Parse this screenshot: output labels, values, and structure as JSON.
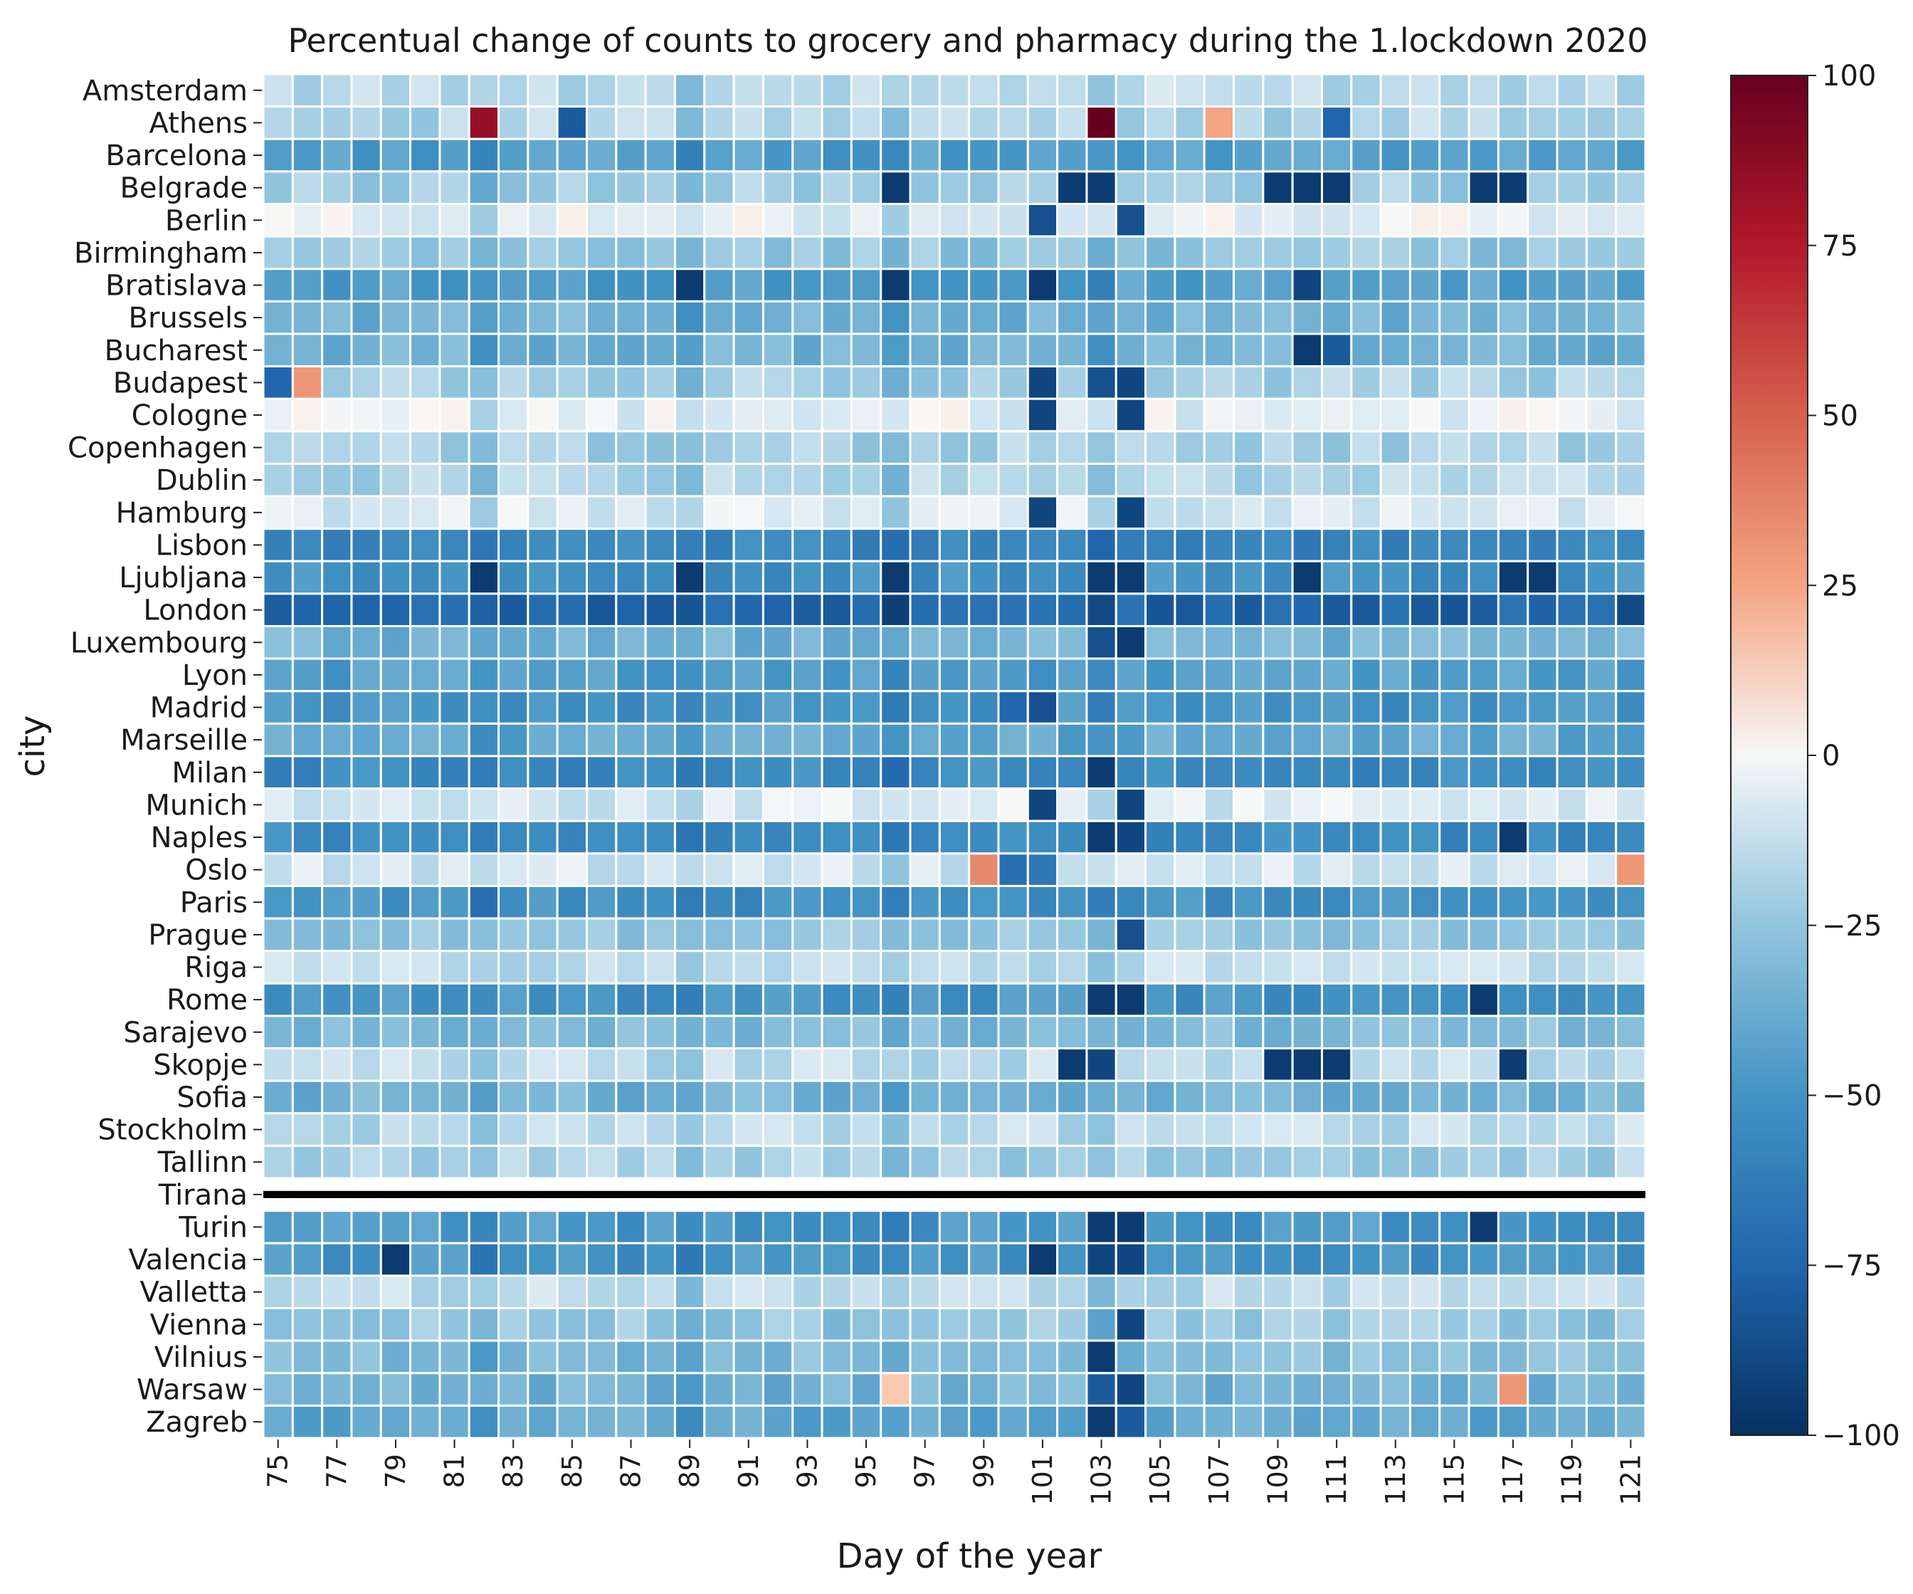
{
  "chart_data": {
    "type": "heatmap",
    "title": "Percentual change of counts to grocery and pharmacy during the 1.lockdown 2020",
    "xlabel": "Day of the year",
    "ylabel": "city",
    "x": [
      75,
      76,
      77,
      78,
      79,
      80,
      81,
      82,
      83,
      84,
      85,
      86,
      87,
      88,
      89,
      90,
      91,
      92,
      93,
      94,
      95,
      96,
      97,
      98,
      99,
      100,
      101,
      102,
      103,
      104,
      105,
      106,
      107,
      108,
      109,
      110,
      111,
      112,
      113,
      114,
      115,
      116,
      117,
      118,
      119,
      120,
      121
    ],
    "x_tick_labels": [
      "75",
      "77",
      "79",
      "81",
      "83",
      "85",
      "87",
      "89",
      "91",
      "93",
      "95",
      "97",
      "99",
      "101",
      "103",
      "105",
      "107",
      "109",
      "111",
      "113",
      "115",
      "117",
      "119",
      "121"
    ],
    "y": [
      "Amsterdam",
      "Athens",
      "Barcelona",
      "Belgrade",
      "Berlin",
      "Birmingham",
      "Bratislava",
      "Brussels",
      "Bucharest",
      "Budapest",
      "Cologne",
      "Copenhagen",
      "Dublin",
      "Hamburg",
      "Lisbon",
      "Ljubljana",
      "London",
      "Luxembourg",
      "Lyon",
      "Madrid",
      "Marseille",
      "Milan",
      "Munich",
      "Naples",
      "Oslo",
      "Paris",
      "Prague",
      "Riga",
      "Rome",
      "Sarajevo",
      "Skopje",
      "Sofia",
      "Stockholm",
      "Tallinn",
      "Tirana",
      "Turin",
      "Valencia",
      "Valletta",
      "Vienna",
      "Vilnius",
      "Warsaw",
      "Zagreb"
    ],
    "colorbar": {
      "range": [
        -100,
        100
      ],
      "ticks": [
        100,
        75,
        50,
        25,
        0,
        -25,
        -50,
        -75,
        -100
      ],
      "tick_labels": [
        "100",
        "75",
        "50",
        "25",
        "0",
        "−25",
        "−50",
        "−75",
        "−100"
      ],
      "colormap": "RdBu_r"
    },
    "missing_row": "Tirana",
    "base_levels": {
      "Amsterdam": -15,
      "Athens": -18,
      "Barcelona": -45,
      "Belgrade": -22,
      "Berlin": -5,
      "Birmingham": -25,
      "Bratislava": -45,
      "Brussels": -35,
      "Bucharest": -35,
      "Budapest": -20,
      "Cologne": -5,
      "Copenhagen": -20,
      "Dublin": -18,
      "Hamburg": -8,
      "Lisbon": -58,
      "Ljubljana": -52,
      "London": -75,
      "Luxembourg": -35,
      "Lyon": -45,
      "Madrid": -50,
      "Marseille": -40,
      "Milan": -55,
      "Munich": -8,
      "Naples": -55,
      "Oslo": -10,
      "Paris": -52,
      "Prague": -25,
      "Riga": -15,
      "Rome": -50,
      "Sarajevo": -30,
      "Skopje": -15,
      "Sofia": -35,
      "Stockholm": -15,
      "Tallinn": -20,
      "Turin": -48,
      "Valencia": -50,
      "Valletta": -15,
      "Vienna": -25,
      "Vilnius": -30,
      "Warsaw": -35,
      "Zagreb": -40
    },
    "highlights": [
      {
        "city": "Athens",
        "day": 82,
        "value": 85
      },
      {
        "city": "Athens",
        "day": 103,
        "value": 100
      },
      {
        "city": "Athens",
        "day": 85,
        "value": -80
      },
      {
        "city": "Athens",
        "day": 107,
        "value": 25
      },
      {
        "city": "Athens",
        "day": 111,
        "value": -75
      },
      {
        "city": "Belgrade",
        "day": 96,
        "value": -95
      },
      {
        "city": "Belgrade",
        "day": 102,
        "value": -95
      },
      {
        "city": "Belgrade",
        "day": 103,
        "value": -95
      },
      {
        "city": "Belgrade",
        "day": 109,
        "value": -95
      },
      {
        "city": "Belgrade",
        "day": 110,
        "value": -95
      },
      {
        "city": "Belgrade",
        "day": 111,
        "value": -95
      },
      {
        "city": "Belgrade",
        "day": 116,
        "value": -95
      },
      {
        "city": "Belgrade",
        "day": 117,
        "value": -95
      },
      {
        "city": "Berlin",
        "day": 101,
        "value": -85
      },
      {
        "city": "Berlin",
        "day": 104,
        "value": -85
      },
      {
        "city": "Bratislava",
        "day": 89,
        "value": -95
      },
      {
        "city": "Bratislava",
        "day": 96,
        "value": -95
      },
      {
        "city": "Bratislava",
        "day": 101,
        "value": -95
      },
      {
        "city": "Bratislava",
        "day": 110,
        "value": -90
      },
      {
        "city": "Bucharest",
        "day": 110,
        "value": -95
      },
      {
        "city": "Bucharest",
        "day": 111,
        "value": -80
      },
      {
        "city": "Budapest",
        "day": 75,
        "value": -75
      },
      {
        "city": "Budapest",
        "day": 76,
        "value": 30
      },
      {
        "city": "Budapest",
        "day": 101,
        "value": -90
      },
      {
        "city": "Budapest",
        "day": 103,
        "value": -85
      },
      {
        "city": "Budapest",
        "day": 104,
        "value": -90
      },
      {
        "city": "Cologne",
        "day": 101,
        "value": -90
      },
      {
        "city": "Cologne",
        "day": 104,
        "value": -90
      },
      {
        "city": "Hamburg",
        "day": 101,
        "value": -90
      },
      {
        "city": "Hamburg",
        "day": 104,
        "value": -90
      },
      {
        "city": "Ljubljana",
        "day": 82,
        "value": -95
      },
      {
        "city": "Ljubljana",
        "day": 89,
        "value": -95
      },
      {
        "city": "Ljubljana",
        "day": 96,
        "value": -95
      },
      {
        "city": "Ljubljana",
        "day": 103,
        "value": -95
      },
      {
        "city": "Ljubljana",
        "day": 104,
        "value": -95
      },
      {
        "city": "Ljubljana",
        "day": 110,
        "value": -95
      },
      {
        "city": "Ljubljana",
        "day": 117,
        "value": -95
      },
      {
        "city": "Ljubljana",
        "day": 118,
        "value": -95
      },
      {
        "city": "London",
        "day": 121,
        "value": -88
      },
      {
        "city": "Luxembourg",
        "day": 103,
        "value": -85
      },
      {
        "city": "Luxembourg",
        "day": 104,
        "value": -95
      },
      {
        "city": "Madrid",
        "day": 100,
        "value": -75
      },
      {
        "city": "Madrid",
        "day": 101,
        "value": -85
      },
      {
        "city": "Milan",
        "day": 103,
        "value": -95
      },
      {
        "city": "Munich",
        "day": 101,
        "value": -90
      },
      {
        "city": "Munich",
        "day": 104,
        "value": -90
      },
      {
        "city": "Naples",
        "day": 103,
        "value": -95
      },
      {
        "city": "Naples",
        "day": 104,
        "value": -90
      },
      {
        "city": "Naples",
        "day": 117,
        "value": -95
      },
      {
        "city": "Oslo",
        "day": 99,
        "value": 35
      },
      {
        "city": "Oslo",
        "day": 100,
        "value": -70
      },
      {
        "city": "Oslo",
        "day": 101,
        "value": -65
      },
      {
        "city": "Oslo",
        "day": 121,
        "value": 30
      },
      {
        "city": "Prague",
        "day": 104,
        "value": -85
      },
      {
        "city": "Rome",
        "day": 103,
        "value": -95
      },
      {
        "city": "Rome",
        "day": 104,
        "value": -95
      },
      {
        "city": "Rome",
        "day": 116,
        "value": -95
      },
      {
        "city": "Skopje",
        "day": 102,
        "value": -95
      },
      {
        "city": "Skopje",
        "day": 103,
        "value": -90
      },
      {
        "city": "Skopje",
        "day": 109,
        "value": -95
      },
      {
        "city": "Skopje",
        "day": 110,
        "value": -95
      },
      {
        "city": "Skopje",
        "day": 111,
        "value": -95
      },
      {
        "city": "Skopje",
        "day": 117,
        "value": -95
      },
      {
        "city": "Turin",
        "day": 103,
        "value": -95
      },
      {
        "city": "Turin",
        "day": 104,
        "value": -95
      },
      {
        "city": "Turin",
        "day": 116,
        "value": -95
      },
      {
        "city": "Valencia",
        "day": 79,
        "value": -95
      },
      {
        "city": "Valencia",
        "day": 101,
        "value": -95
      },
      {
        "city": "Valencia",
        "day": 103,
        "value": -90
      },
      {
        "city": "Valencia",
        "day": 104,
        "value": -90
      },
      {
        "city": "Vienna",
        "day": 104,
        "value": -90
      },
      {
        "city": "Vilnius",
        "day": 103,
        "value": -95
      },
      {
        "city": "Warsaw",
        "day": 96,
        "value": 15
      },
      {
        "city": "Warsaw",
        "day": 103,
        "value": -80
      },
      {
        "city": "Warsaw",
        "day": 104,
        "value": -90
      },
      {
        "city": "Warsaw",
        "day": 117,
        "value": 30
      },
      {
        "city": "Zagreb",
        "day": 103,
        "value": -95
      },
      {
        "city": "Zagreb",
        "day": 104,
        "value": -80
      }
    ]
  }
}
